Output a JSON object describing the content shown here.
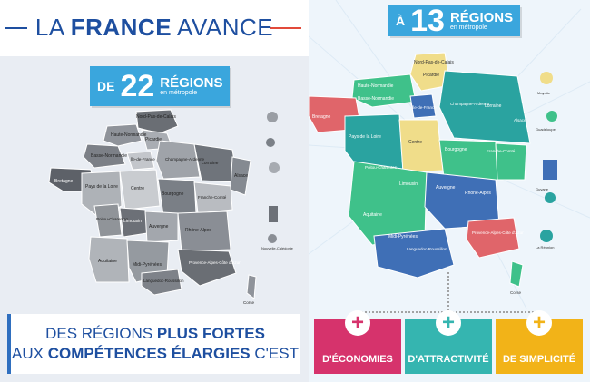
{
  "header": {
    "title_light": "LA",
    "title_bold": "FRANCE",
    "title_light2": "AVANCE"
  },
  "left_badge": {
    "prefix": "DE",
    "number": "22",
    "word": "RÉGIONS",
    "sub": "en métropole"
  },
  "right_badge": {
    "prefix": "À",
    "number": "13",
    "word": "RÉGIONS",
    "sub": "en métropole"
  },
  "left_map_labels": [
    "Nord-Pas-de-Calais",
    "Haute-Normandie",
    "Picardie",
    "Basse-Normandie",
    "Île-de-France",
    "Champagne-Ardenne",
    "Lorraine",
    "Alsace",
    "Bretagne",
    "Pays de la Loire",
    "Centre",
    "Bourgogne",
    "Franche-Comté",
    "Poitou-Charentes",
    "Limousin",
    "Auvergne",
    "Rhône-Alpes",
    "Aquitaine",
    "Midi-Pyrénées",
    "Languedoc-Roussillon",
    "Provence-Alpes-Côte d'Azur",
    "Corse"
  ],
  "right_map_labels": [
    "Nord-Pas-de-Calais",
    "Haute-Normandie",
    "Picardie",
    "Basse-Normandie",
    "Île-de-France",
    "Champagne-Ardenne",
    "Lorraine",
    "Alsace",
    "Bretagne",
    "Pays de la Loire",
    "Centre",
    "Bourgogne",
    "Franche-Comté",
    "Poitou-Charentes",
    "Limousin",
    "Auvergne",
    "Rhône-Alpes",
    "Aquitaine",
    "Midi-Pyrénées",
    "Languedoc-Roussillon",
    "Provence-Alpes-Côte d'Azur",
    "Corse"
  ],
  "overseas_labels": [
    "Mayotte",
    "Guadeloupe",
    "Martinique",
    "Guyane",
    "La Réunion",
    "Nouvelle-Calédonie"
  ],
  "bottom": {
    "line1_a": "DES RÉGIONS",
    "line1_b": "PLUS FORTES",
    "line2_a": "AUX",
    "line2_b": "COMPÉTENCES ÉLARGIES",
    "line2_c": "C'EST"
  },
  "cards": [
    {
      "label": "D'ÉCONOMIES",
      "color": "#d6336c"
    },
    {
      "label": "D'ATTRACTIVITÉ",
      "color": "#35b5b0"
    },
    {
      "label": "DE SIMPLICITÉ",
      "color": "#f2b318"
    }
  ],
  "colors": {
    "brand_blue": "#1e4fa0",
    "badge_blue": "#3aa6dd",
    "map_green": "#3fc18a",
    "map_teal": "#2aa3a0",
    "map_blue": "#3f6fb6",
    "map_yellow": "#f0dd8a",
    "map_red": "#e0656a"
  }
}
